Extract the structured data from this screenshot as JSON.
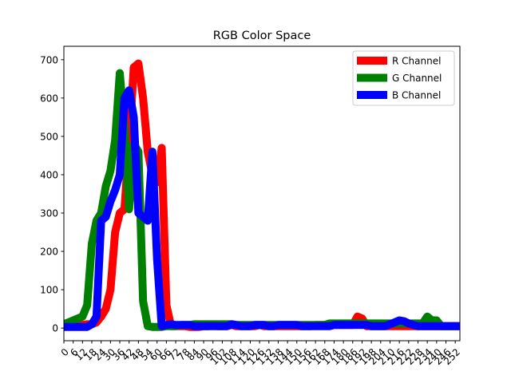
{
  "chart_data": {
    "type": "line",
    "title": "RGB Color Space",
    "xlabel": "",
    "ylabel": "",
    "xlim": [
      0,
      255
    ],
    "ylim": [
      -33,
      735
    ],
    "yticks": [
      0,
      100,
      200,
      300,
      400,
      500,
      600,
      700
    ],
    "xticks": [
      0,
      6,
      12,
      18,
      24,
      30,
      36,
      42,
      48,
      54,
      60,
      66,
      72,
      78,
      84,
      90,
      96,
      102,
      108,
      114,
      120,
      126,
      132,
      138,
      144,
      150,
      156,
      162,
      168,
      174,
      180,
      186,
      192,
      198,
      204,
      210,
      216,
      222,
      228,
      234,
      240,
      246,
      252
    ],
    "legend_position": "top-right",
    "grid": false,
    "x": [
      0,
      3,
      6,
      9,
      12,
      15,
      18,
      21,
      24,
      27,
      30,
      33,
      36,
      39,
      42,
      45,
      48,
      51,
      54,
      57,
      60,
      63,
      66,
      69,
      72,
      75,
      78,
      81,
      84,
      87,
      90,
      93,
      96,
      99,
      102,
      105,
      108,
      111,
      114,
      117,
      120,
      123,
      126,
      129,
      132,
      135,
      138,
      141,
      144,
      147,
      150,
      153,
      156,
      159,
      162,
      165,
      168,
      171,
      174,
      177,
      180,
      183,
      186,
      189,
      192,
      195,
      198,
      201,
      204,
      207,
      210,
      213,
      216,
      219,
      222,
      225,
      228,
      231,
      234,
      237,
      240,
      243,
      246,
      249,
      252,
      255
    ],
    "series": [
      {
        "name": "R Channel",
        "color": "#ff0000",
        "values": [
          5,
          5,
          5,
          8,
          8,
          10,
          10,
          15,
          30,
          50,
          100,
          250,
          300,
          310,
          480,
          680,
          690,
          600,
          460,
          400,
          380,
          470,
          60,
          5,
          5,
          5,
          5,
          3,
          3,
          3,
          5,
          5,
          8,
          5,
          5,
          5,
          8,
          5,
          5,
          5,
          5,
          5,
          8,
          5,
          5,
          5,
          5,
          5,
          5,
          5,
          5,
          5,
          5,
          5,
          8,
          8,
          8,
          8,
          8,
          8,
          8,
          8,
          8,
          30,
          25,
          5,
          5,
          5,
          5,
          5,
          5,
          5,
          5,
          5,
          5,
          5,
          5,
          5,
          5,
          5,
          5,
          5,
          5,
          5,
          5,
          5
        ]
      },
      {
        "name": "G Channel",
        "color": "#008000",
        "values": [
          10,
          15,
          20,
          25,
          30,
          60,
          220,
          280,
          300,
          370,
          410,
          490,
          665,
          520,
          310,
          480,
          460,
          70,
          5,
          3,
          3,
          3,
          5,
          5,
          5,
          8,
          8,
          8,
          10,
          10,
          10,
          10,
          10,
          10,
          10,
          10,
          10,
          8,
          8,
          8,
          8,
          8,
          8,
          8,
          8,
          8,
          8,
          8,
          8,
          8,
          8,
          8,
          8,
          8,
          8,
          8,
          8,
          12,
          12,
          12,
          12,
          12,
          12,
          12,
          12,
          12,
          12,
          12,
          12,
          12,
          12,
          12,
          12,
          12,
          12,
          12,
          12,
          12,
          30,
          20,
          20,
          5,
          5,
          5,
          5,
          5
        ]
      },
      {
        "name": "B Channel",
        "color": "#0000ff",
        "values": [
          3,
          3,
          3,
          3,
          3,
          3,
          10,
          30,
          280,
          290,
          330,
          360,
          400,
          600,
          620,
          550,
          300,
          290,
          280,
          460,
          180,
          5,
          8,
          10,
          8,
          8,
          8,
          8,
          5,
          5,
          5,
          5,
          5,
          5,
          5,
          5,
          10,
          8,
          5,
          5,
          5,
          8,
          8,
          8,
          5,
          5,
          8,
          8,
          8,
          8,
          8,
          5,
          5,
          5,
          5,
          5,
          5,
          5,
          8,
          8,
          8,
          8,
          8,
          8,
          8,
          8,
          5,
          5,
          5,
          5,
          10,
          15,
          20,
          18,
          12,
          8,
          5,
          5,
          5,
          5,
          5,
          5,
          5,
          5,
          5,
          5
        ]
      }
    ]
  }
}
